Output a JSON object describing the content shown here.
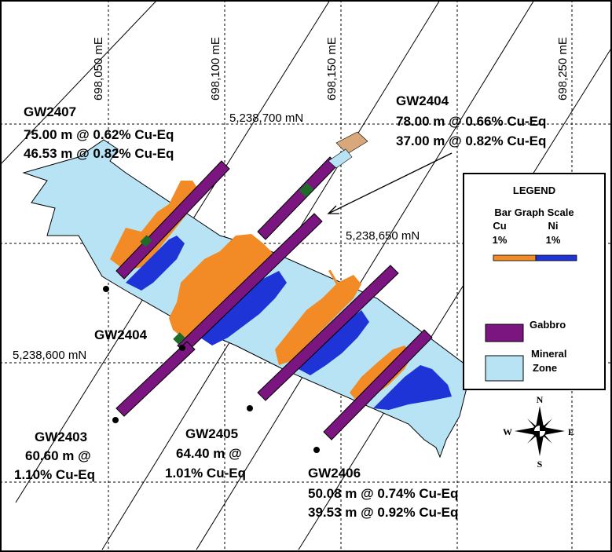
{
  "colors": {
    "mineral_zone": "#b7e3f5",
    "gabbro": "#7b157f",
    "cu_bar": "#f28a25",
    "ni_bar": "#1f34d6",
    "grid": "#000000"
  },
  "grid_labels": {
    "eastings": [
      "698,050 mE",
      "698,100 mE",
      "698,150 mE",
      "698,250 mE"
    ],
    "northings": [
      "5,238,700 mN",
      "5,238,650 mN",
      "5,238,600 mN"
    ]
  },
  "holes": {
    "gw2407": {
      "name": "GW2407",
      "intervals": [
        "75.00 m @ 0.62% Cu-Eq",
        "46.53 m @ 0.82% Cu-Eq"
      ]
    },
    "gw2404_top": {
      "name": "GW2404",
      "intervals": [
        "78.00 m @ 0.66% Cu-Eq",
        "37.00 m @ 0.82% Cu-Eq"
      ]
    },
    "gw2404_collar": {
      "name": "GW2404"
    },
    "gw2403": {
      "name": "GW2403",
      "intervals": [
        "60.60 m @",
        "1.10% Cu-Eq"
      ]
    },
    "gw2405": {
      "name": "GW2405",
      "intervals": [
        "64.40 m @",
        "1.01% Cu-Eq"
      ]
    },
    "gw2406": {
      "name": "GW2406",
      "intervals": [
        "50.08 m @ 0.74% Cu-Eq",
        "39.53 m @ 0.92% Cu-Eq"
      ]
    }
  },
  "legend": {
    "title": "LEGEND",
    "bar_graph_scale": "Bar Graph Scale",
    "cu_label": "Cu",
    "ni_label": "Ni",
    "cu_scale": "1%",
    "ni_scale": "1%",
    "gabbro_label": "Gabbro",
    "mineral_label_1": "Mineral",
    "mineral_label_2": "Zone"
  },
  "compass": {
    "n": "N",
    "s": "S",
    "e": "E",
    "w": "W"
  }
}
